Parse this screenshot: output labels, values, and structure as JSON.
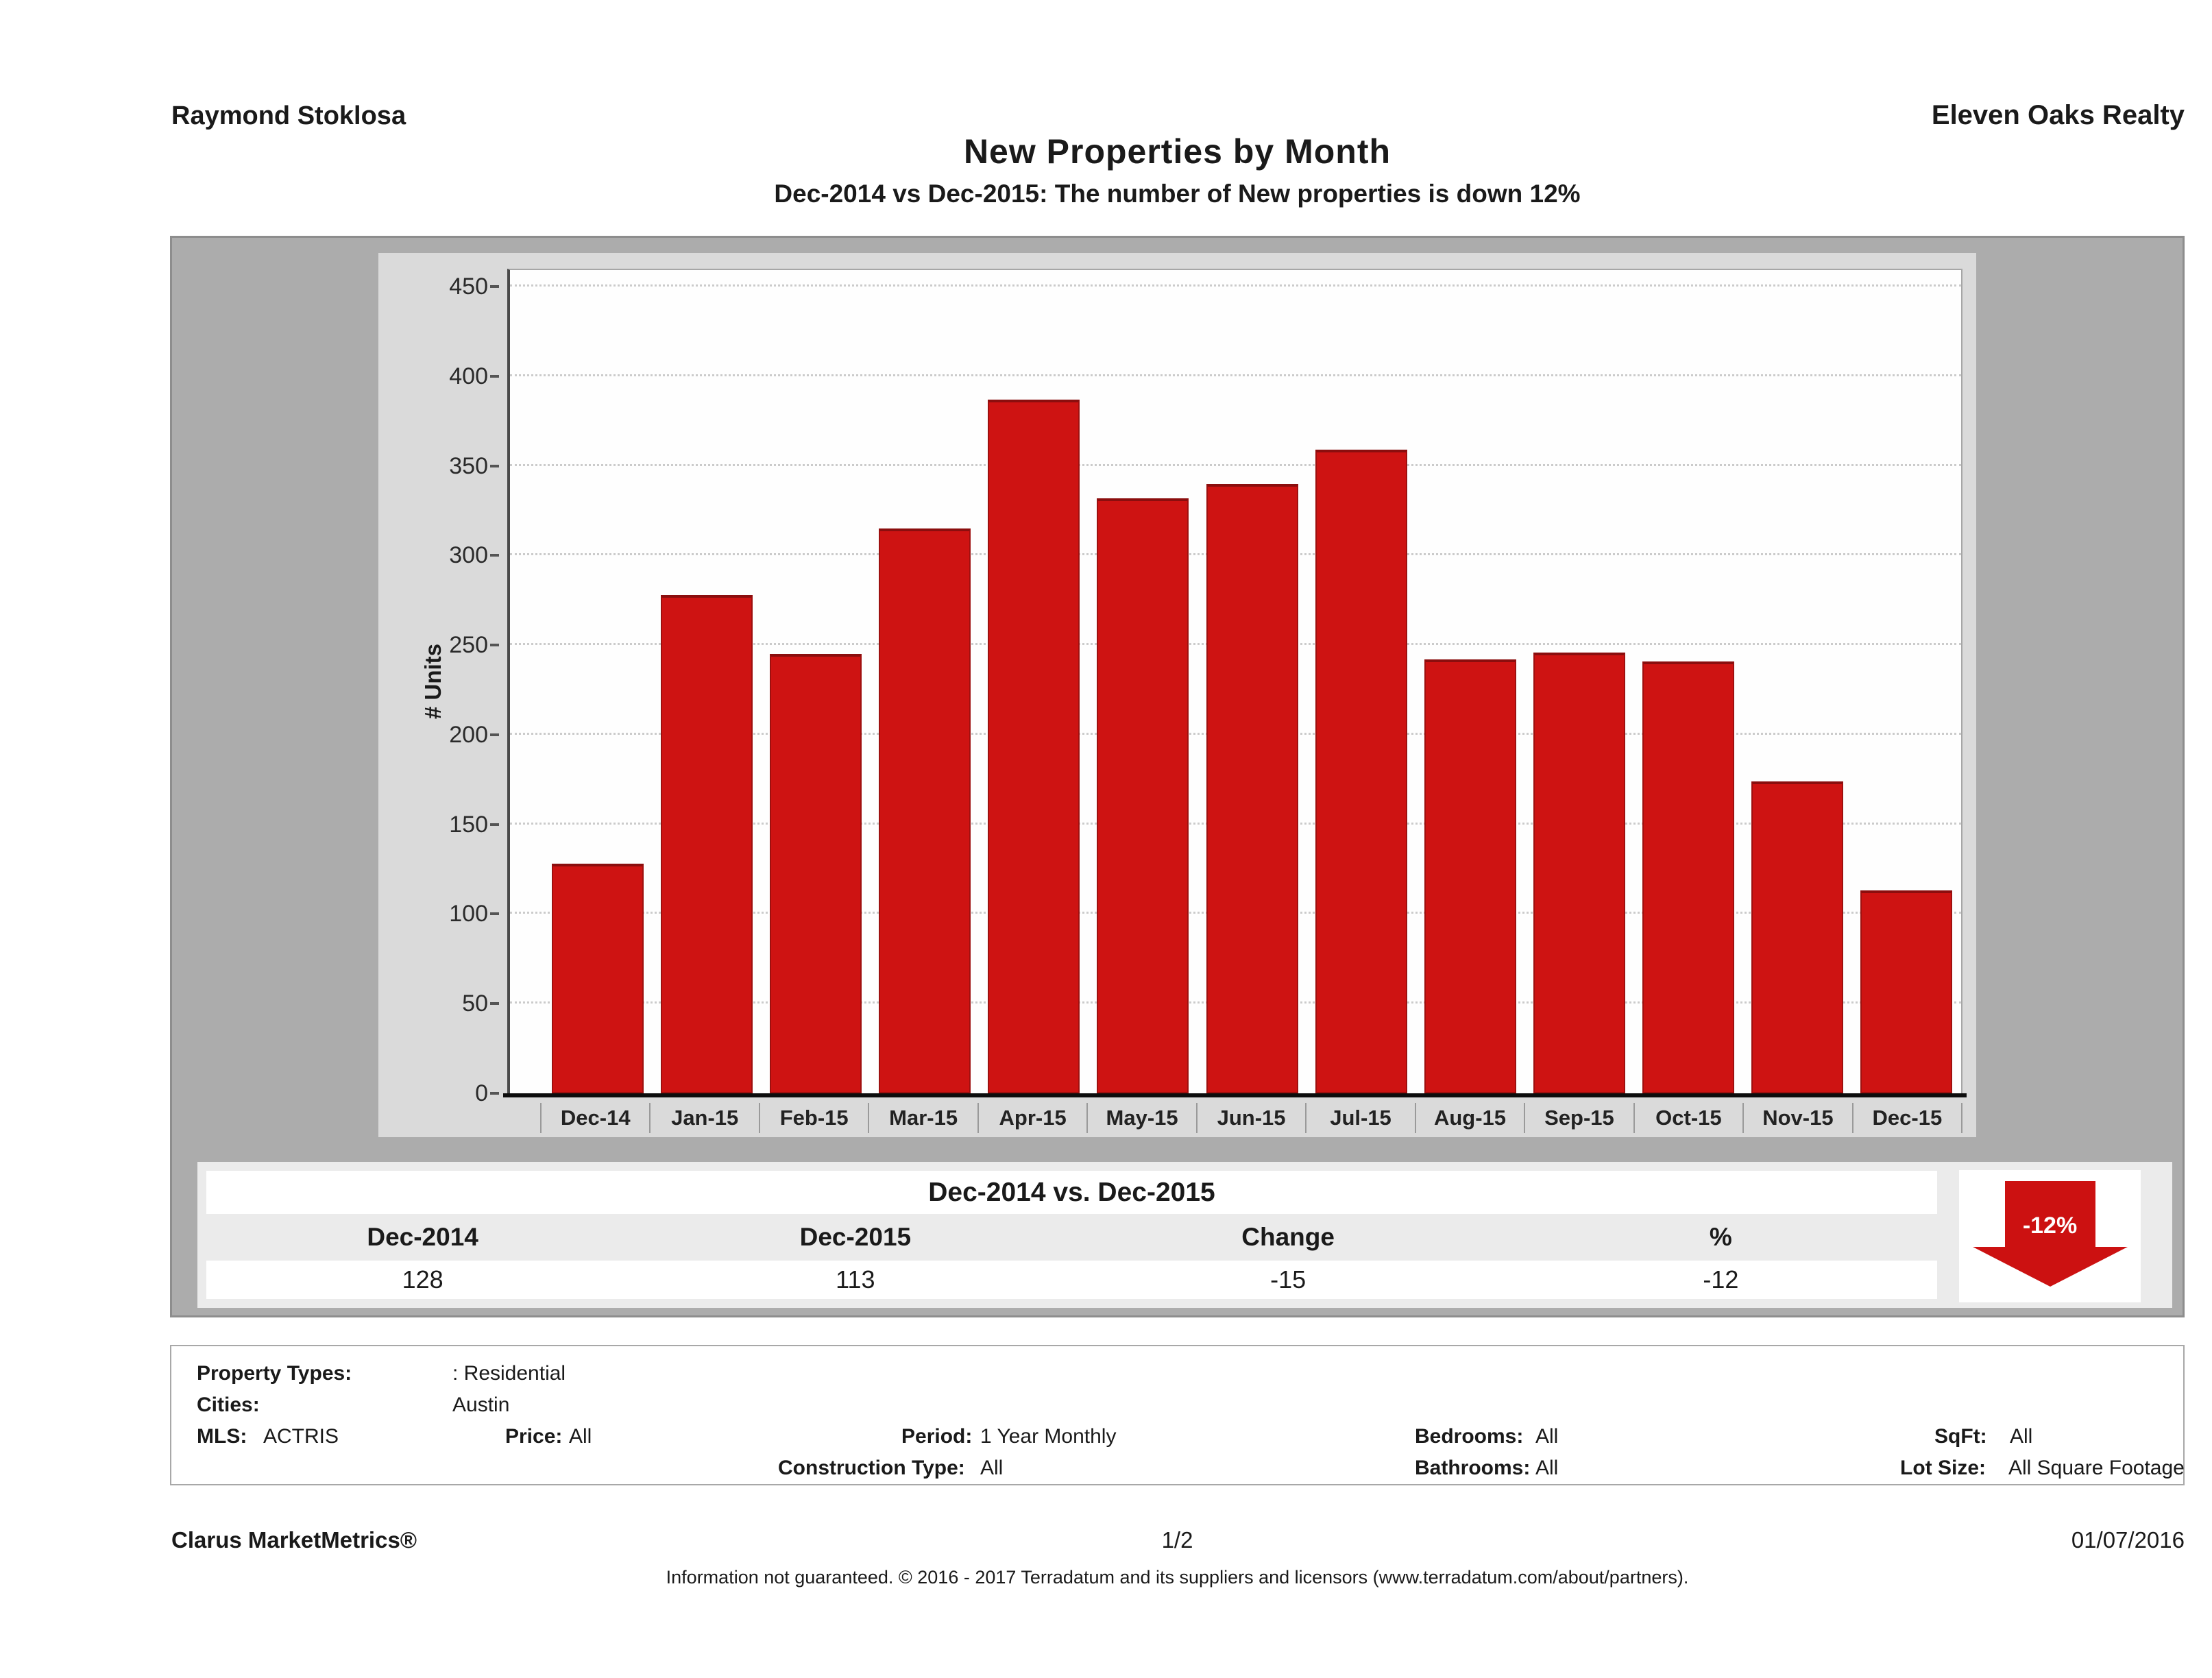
{
  "header": {
    "agent": "Raymond Stoklosa",
    "office": "Eleven Oaks Realty"
  },
  "title": "New Properties by Month",
  "subtitle": "Dec-2014 vs Dec-2015: The number of New  properties is down 12%",
  "chart_data": {
    "type": "bar",
    "title": "New Properties by Month",
    "categories": [
      "Dec-14",
      "Jan-15",
      "Feb-15",
      "Mar-15",
      "Apr-15",
      "May-15",
      "Jun-15",
      "Jul-15",
      "Aug-15",
      "Sep-15",
      "Oct-15",
      "Nov-15",
      "Dec-15"
    ],
    "values": [
      128,
      278,
      245,
      315,
      387,
      332,
      340,
      359,
      242,
      246,
      241,
      174,
      113
    ],
    "xlabel": "",
    "ylabel": "# Units",
    "ylim": [
      0,
      460
    ],
    "yticks": [
      0,
      50,
      100,
      150,
      200,
      250,
      300,
      350,
      400,
      450
    ],
    "grid": true,
    "legend": "none",
    "bar_color": "#ce1312"
  },
  "summary_table": {
    "title": "Dec-2014 vs. Dec-2015",
    "headers": [
      "Dec-2014",
      "Dec-2015",
      "Change",
      "%"
    ],
    "values": [
      "128",
      "113",
      "-15",
      "-12"
    ]
  },
  "badge": {
    "label": "-12%",
    "direction": "down",
    "color": "#cc1111"
  },
  "criteria": {
    "property_types_label": "Property Types:",
    "property_types": ": Residential",
    "cities_label": "Cities:",
    "cities": "Austin",
    "mls_label": "MLS:",
    "mls": "ACTRIS",
    "price_label": "Price:",
    "price": "All",
    "period_label": "Period:",
    "period": "1 Year Monthly",
    "bedrooms_label": "Bedrooms:",
    "bedrooms": "All",
    "sqft_label": "SqFt:",
    "sqft": "All",
    "construction_label": "Construction Type:",
    "construction": "All",
    "bathrooms_label": "Bathrooms:",
    "bathrooms": "All",
    "lot_label": "Lot Size:",
    "lot": "All Square Footage"
  },
  "footer": {
    "brand": "Clarus MarketMetrics®",
    "page": "1/2",
    "date": "01/07/2016",
    "disclaimer": "Information not guaranteed. © 2016 - 2017 Terradatum and its suppliers and licensors (www.terradatum.com/about/partners)."
  }
}
